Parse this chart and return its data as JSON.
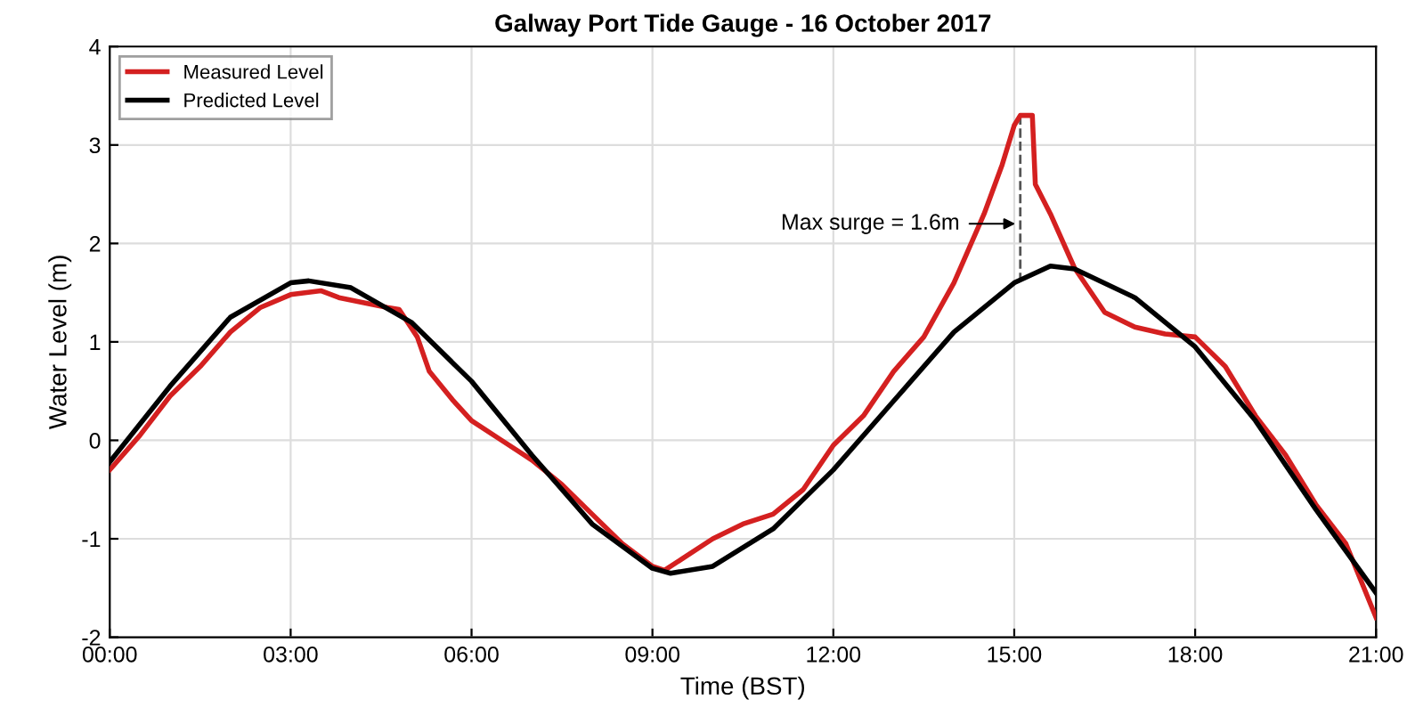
{
  "chart_data": {
    "type": "line",
    "title": "Galway Port Tide Gauge - 16 October 2017",
    "xlabel": "Time (BST)",
    "ylabel": "Water Level (m)",
    "xlim": [
      0,
      21
    ],
    "xticks": [
      {
        "value": 0,
        "label": "00:00"
      },
      {
        "value": 3,
        "label": "03:00"
      },
      {
        "value": 6,
        "label": "06:00"
      },
      {
        "value": 9,
        "label": "09:00"
      },
      {
        "value": 12,
        "label": "12:00"
      },
      {
        "value": 15,
        "label": "15:00"
      },
      {
        "value": 18,
        "label": "18:00"
      },
      {
        "value": 21,
        "label": "21:00"
      }
    ],
    "ylim": [
      -2,
      4
    ],
    "yticks": [
      -2,
      -1,
      0,
      1,
      2,
      3,
      4
    ],
    "grid": true,
    "legend": "top left",
    "series": [
      {
        "name": "Measured Level",
        "color": "#d42020",
        "x": [
          0,
          0.5,
          1,
          1.5,
          2,
          2.5,
          3,
          3.5,
          3.8,
          4.2,
          4.6,
          4.8,
          5.1,
          5.3,
          5.7,
          6,
          6.5,
          7,
          7.5,
          8,
          8.5,
          9,
          9.2,
          9.5,
          10,
          10.5,
          11,
          11.5,
          12,
          12.5,
          13,
          13.5,
          14,
          14.5,
          14.8,
          15.0,
          15.1,
          15.3,
          15.35,
          15.6,
          16.0,
          16.5,
          17,
          17.5,
          18,
          18.5,
          19,
          19.5,
          20,
          20.5,
          21
        ],
        "values": [
          -0.3,
          0.05,
          0.45,
          0.75,
          1.1,
          1.35,
          1.48,
          1.52,
          1.45,
          1.4,
          1.35,
          1.33,
          1.05,
          0.7,
          0.4,
          0.2,
          0.0,
          -0.2,
          -0.45,
          -0.75,
          -1.05,
          -1.28,
          -1.32,
          -1.2,
          -1.0,
          -0.85,
          -0.75,
          -0.5,
          -0.05,
          0.25,
          0.7,
          1.05,
          1.6,
          2.3,
          2.8,
          3.2,
          3.3,
          3.3,
          2.6,
          2.3,
          1.75,
          1.3,
          1.15,
          1.08,
          1.05,
          0.75,
          0.25,
          -0.15,
          -0.65,
          -1.05,
          -1.8
        ]
      },
      {
        "name": "Predicted Level",
        "color": "#000000",
        "x": [
          0,
          1,
          2,
          3,
          3.3,
          4,
          5,
          6,
          7,
          8,
          9,
          9.3,
          10,
          11,
          12,
          13,
          14,
          15,
          15.6,
          16,
          17,
          18,
          19,
          20,
          21
        ],
        "values": [
          -0.22,
          0.55,
          1.25,
          1.6,
          1.62,
          1.55,
          1.2,
          0.6,
          -0.15,
          -0.85,
          -1.3,
          -1.35,
          -1.28,
          -0.9,
          -0.3,
          0.4,
          1.1,
          1.6,
          1.77,
          1.74,
          1.45,
          0.95,
          0.2,
          -0.7,
          -1.55
        ]
      }
    ],
    "annotations": [
      "Max surge = 1.6m"
    ]
  }
}
